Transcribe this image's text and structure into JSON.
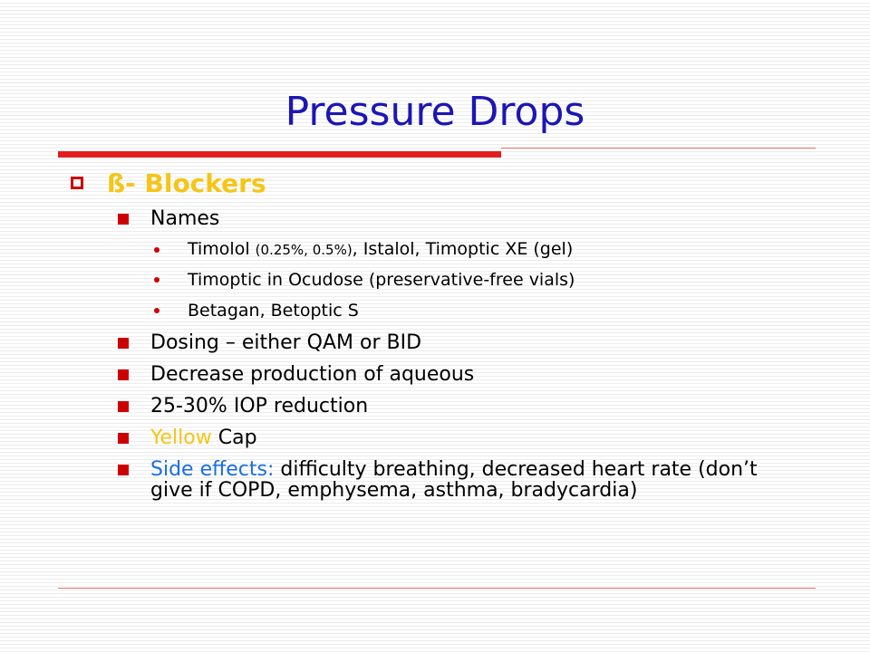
{
  "slide": {
    "title": "Pressure Drops",
    "section": "ß- Blockers",
    "names_label": "Names",
    "names_list": {
      "timolol": {
        "name": "Timolol",
        "conc": "(0.25%, 0.5%)",
        "rest": ", Istalol, Timoptic XE (gel)"
      },
      "ocudose": "Timoptic in Ocudose (preservative-free vials)",
      "betagan": "Betagan, Betoptic S"
    },
    "dosing": "Dosing – either QAM or BID",
    "mechanism": "Decrease production of aqueous",
    "iop": "25-30% IOP reduction",
    "cap": {
      "color_word": "Yellow",
      "rest": " Cap"
    },
    "side_effects": {
      "label": "Side effects:",
      "text": " difficulty breathing, decreased heart rate (don’t give if COPD, emphysema, asthma, bradycardia)"
    }
  },
  "colors": {
    "title": "#1c16b4",
    "accent_red": "#cc0000",
    "section_yellow": "#f5c518",
    "side_effects_blue": "#1a6ee0"
  }
}
